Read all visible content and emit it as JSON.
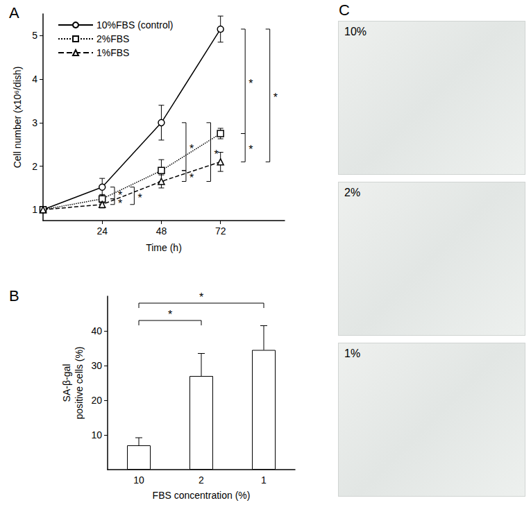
{
  "chart_data": [
    {
      "type": "line",
      "title": "A",
      "x": [
        0,
        24,
        48,
        72
      ],
      "xlim": [
        0,
        98
      ],
      "xticks": [
        24,
        48,
        72
      ],
      "ylim": [
        0.75,
        5.5
      ],
      "yticks": [
        1,
        2,
        3,
        4,
        5
      ],
      "x_label": "Time (h)",
      "y_label": "Cell number (x10⁶/dish)",
      "legend": "upper left",
      "series": [
        {
          "name": "10%FBS (control)",
          "color": "#000000",
          "marker": "circle",
          "line_style": "solid",
          "values": [
            1,
            1.52,
            3.0,
            5.15
          ],
          "errors": [
            null,
            0.2,
            0.4,
            0.3
          ]
        },
        {
          "name": "2%FBS",
          "color": "#000000",
          "marker": "square",
          "line_style": "dotted",
          "values": [
            1,
            1.25,
            1.9,
            2.75
          ],
          "errors": [
            null,
            0.1,
            0.25,
            0.12
          ]
        },
        {
          "name": "1%FBS",
          "color": "#000000",
          "marker": "triangle",
          "line_style": "dashed",
          "values": [
            1,
            1.12,
            1.65,
            2.1
          ],
          "errors": [
            null,
            0.08,
            0.15,
            0.22
          ]
        }
      ],
      "annotations": [
        {
          "text": "*",
          "x": 29,
          "y_from": 1.52,
          "y_to": 1.25
        },
        {
          "text": "*",
          "x": 29,
          "y_from": 1.25,
          "y_to": 1.12
        },
        {
          "text": "*",
          "x": 37,
          "y_from": 1.52,
          "y_to": 1.12
        },
        {
          "text": "*",
          "x": 58,
          "y_from": 3.0,
          "y_to": 1.9
        },
        {
          "text": "*",
          "x": 58,
          "y_from": 1.9,
          "y_to": 1.65
        },
        {
          "text": "*",
          "x": 68,
          "y_from": 3.0,
          "y_to": 1.65
        },
        {
          "text": "*",
          "x": 82,
          "y_from": 5.15,
          "y_to": 2.75
        },
        {
          "text": "*",
          "x": 82,
          "y_from": 2.75,
          "y_to": 2.1
        },
        {
          "text": "*",
          "x": 92,
          "y_from": 5.15,
          "y_to": 2.1
        }
      ]
    },
    {
      "type": "bar",
      "title": "B",
      "categories": [
        "10",
        "2",
        "1"
      ],
      "values": [
        7,
        27,
        34.5
      ],
      "errors": [
        2.2,
        6.5,
        7
      ],
      "color": "#ffffff",
      "ylim": [
        0,
        50
      ],
      "yticks": [
        10,
        20,
        30,
        40
      ],
      "x_label": "FBS concentration (%)",
      "y_label": "SA-β-gal\npositive cells (%)",
      "annotations": [
        {
          "text": "*",
          "from": "10",
          "to": "2",
          "y": 43
        },
        {
          "text": "*",
          "from": "10",
          "to": "1",
          "y": 48
        }
      ]
    },
    {
      "type": "image",
      "title": "C",
      "labels": [
        "10%",
        "2%",
        "1%"
      ]
    }
  ]
}
